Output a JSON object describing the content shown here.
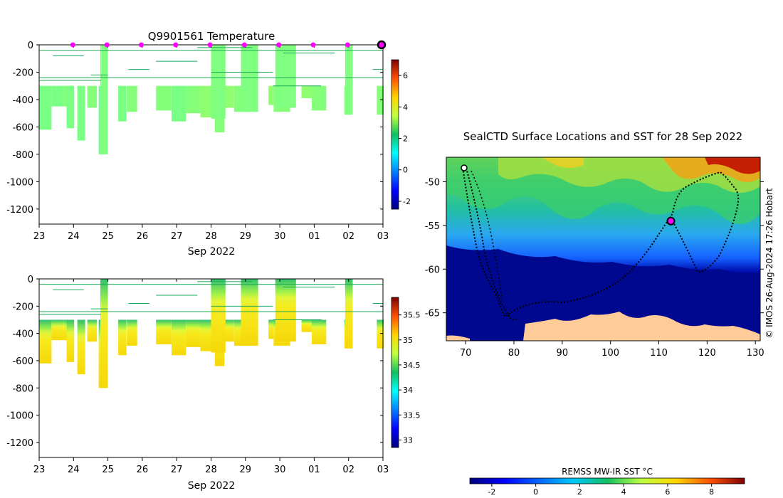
{
  "chart_data": [
    {
      "type": "heatmap",
      "title": "Q9901561  Temperature",
      "xlabel": "Sep 2022",
      "x_ticks": [
        "23",
        "24",
        "25",
        "26",
        "27",
        "28",
        "29",
        "30",
        "01",
        "02",
        "03"
      ],
      "y_ticks": [
        "0",
        "-200",
        "-400",
        "-600",
        "-800",
        "-1000",
        "-1200"
      ],
      "ylim": [
        -1310,
        0
      ],
      "colorbar_ticks": [
        "-2",
        "0",
        "2",
        "4",
        "6"
      ],
      "colorbar_range": [
        -2.5,
        7
      ],
      "profile_markers_day": [
        0.98,
        1.97,
        2.97,
        3.97,
        4.97,
        5.97,
        6.97,
        7.97,
        8.97,
        9.96
      ],
      "profiles": [
        {
          "day": 0.0,
          "width": 0.36,
          "depth": 620,
          "value": 2.2
        },
        {
          "day": 0.36,
          "width": 0.36,
          "depth": 450,
          "value": 2.2
        },
        {
          "day": 0.72,
          "width": 0.28,
          "depth": 450,
          "value": 2.3
        },
        {
          "day": 0.8,
          "width": 0.22,
          "depth": 610,
          "value": 2.2
        },
        {
          "day": 1.11,
          "width": 0.23,
          "depth": 700,
          "value": 2.2
        },
        {
          "day": 1.4,
          "width": 0.28,
          "depth": 460,
          "value": 2.3
        },
        {
          "day": 1.73,
          "width": 0.25,
          "depth": 800,
          "value": 2.1
        },
        {
          "day": 2.3,
          "width": 0.24,
          "depth": 560,
          "value": 2.2
        },
        {
          "day": 2.55,
          "width": 0.3,
          "depth": 490,
          "value": 2.3
        },
        {
          "day": 3.4,
          "width": 0.45,
          "depth": 480,
          "value": 2.3
        },
        {
          "day": 3.85,
          "width": 0.42,
          "depth": 560,
          "value": 2.2
        },
        {
          "day": 4.27,
          "width": 0.42,
          "depth": 500,
          "value": 2.3
        },
        {
          "day": 4.69,
          "width": 0.42,
          "depth": 530,
          "value": 2.4
        },
        {
          "day": 5.11,
          "width": 0.28,
          "depth": 640,
          "value": 2.3
        },
        {
          "day": 5.39,
          "width": 0.28,
          "depth": 460,
          "value": 2.4
        },
        {
          "day": 5.67,
          "width": 0.5,
          "depth": 490,
          "value": 2.3
        },
        {
          "day": 6.67,
          "width": 0.15,
          "depth": 440,
          "value": 2.4
        },
        {
          "day": 6.82,
          "width": 0.48,
          "depth": 490,
          "value": 2.3
        },
        {
          "day": 7.63,
          "width": 0.3,
          "depth": 390,
          "value": 2.4
        },
        {
          "day": 7.93,
          "width": 0.42,
          "depth": 480,
          "value": 2.3
        },
        {
          "day": 8.88,
          "width": 0.22,
          "depth": 510,
          "value": 2.3
        },
        {
          "day": 9.82,
          "width": 0.2,
          "depth": 510,
          "value": 2.3
        }
      ]
    },
    {
      "type": "heatmap",
      "title": "",
      "xlabel": "Sep 2022",
      "x_ticks": [
        "23",
        "24",
        "25",
        "26",
        "27",
        "28",
        "29",
        "30",
        "01",
        "02",
        "03"
      ],
      "y_ticks": [
        "0",
        "-200",
        "-400",
        "-600",
        "-800",
        "-1000",
        "-1200"
      ],
      "ylim": [
        -1310,
        0
      ],
      "colorbar_ticks": [
        "33",
        "33.5",
        "34",
        "34.5",
        "35",
        "35.5"
      ],
      "colorbar_range": [
        32.85,
        35.85
      ],
      "note": "salinity-like field, increasing with depth"
    },
    {
      "type": "map",
      "title": "SealCTD Surface Locations and SST for 28 Sep 2022",
      "x_ticks": [
        "70",
        "80",
        "90",
        "100",
        "110",
        "120",
        "130"
      ],
      "y_ticks": [
        "-50",
        "-55",
        "-60",
        "-65"
      ],
      "xlim": [
        66,
        131
      ],
      "ylim": [
        -68.2,
        -47.2
      ],
      "current_position": {
        "lon": 112.5,
        "lat": -54.5
      },
      "colorbar_title": "REMSS MW-IR SST °C",
      "colorbar_ticks": [
        "-2",
        "0",
        "2",
        "4",
        "6",
        "8"
      ],
      "colorbar_range": [
        -3,
        9.5
      ],
      "credit": "© IMOS 26-Aug-2024 17:26 Hobart"
    }
  ]
}
